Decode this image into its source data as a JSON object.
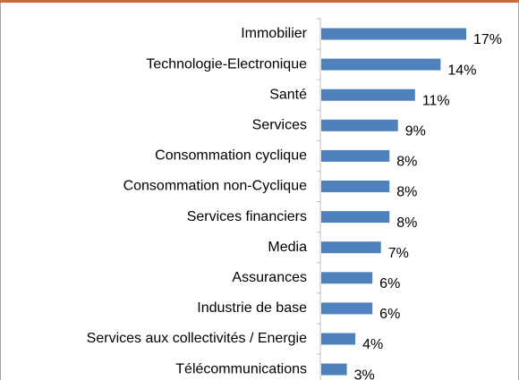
{
  "chart_data": {
    "type": "bar",
    "orientation": "horizontal",
    "color": "#4f81bd",
    "categories": [
      "Immobilier",
      "Technologie-Electronique",
      "Santé",
      "Services",
      "Consommation cyclique",
      "Consommation non-Cyclique",
      "Services financiers",
      "Media",
      "Assurances",
      "Industrie de base",
      "Services aux collectivités / Energie",
      "Télécommunications"
    ],
    "values": [
      17,
      14,
      11,
      9,
      8,
      8,
      8,
      7,
      6,
      6,
      4,
      3
    ],
    "value_labels": [
      "17%",
      "14%",
      "11%",
      "9%",
      "8%",
      "8%",
      "8%",
      "7%",
      "6%",
      "6%",
      "4%",
      "3%"
    ]
  }
}
